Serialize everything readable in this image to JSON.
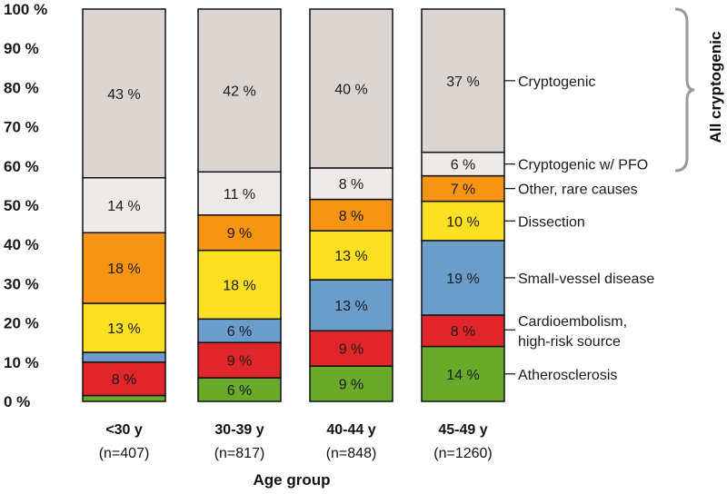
{
  "chart_data": {
    "type": "bar",
    "stacked": true,
    "xlabel": "Age group",
    "ylabel": "",
    "ylim": [
      0,
      100
    ],
    "yticks": [
      "0 %",
      "10 %",
      "20 %",
      "30 %",
      "40 %",
      "50 %",
      "60 %",
      "70 %",
      "80 %",
      "90 %",
      "100 %"
    ],
    "categories": [
      {
        "label": "<30 y",
        "n": "(n=407)"
      },
      {
        "label": "30-39 y",
        "n": "(n=817)"
      },
      {
        "label": "40-44 y",
        "n": "(n=848)"
      },
      {
        "label": "45-49 y",
        "n": "(n=1260)"
      }
    ],
    "series": [
      {
        "name": "Atherosclerosis",
        "color": "#6aaa2a",
        "values": [
          1.5,
          6,
          9,
          14
        ],
        "labels": [
          "",
          "6 %",
          "9 %",
          "14 %"
        ]
      },
      {
        "name": "Cardioembolism, high-risk source",
        "color": "#e0262b",
        "values": [
          8.5,
          9,
          9,
          8
        ],
        "labels": [
          "8 %",
          "9 %",
          "9 %",
          "8 %"
        ]
      },
      {
        "name": "Small-vessel disease",
        "color": "#6b9dcb",
        "values": [
          2.5,
          6,
          13,
          19
        ],
        "labels": [
          "",
          "6 %",
          "13 %",
          "19 %"
        ]
      },
      {
        "name": "Dissection",
        "color": "#fde022",
        "values": [
          12.5,
          17.5,
          12.5,
          10
        ],
        "labels": [
          "13 %",
          "18 %",
          "13 %",
          "10 %"
        ]
      },
      {
        "name": "Other, rare causes",
        "color": "#f79414",
        "values": [
          18,
          9,
          8,
          6.5
        ],
        "labels": [
          "18 %",
          "9 %",
          "8 %",
          "7 %"
        ]
      },
      {
        "name": "Cryptogenic w/ PFO",
        "color": "#eeeaea",
        "values": [
          14,
          11,
          8,
          6
        ],
        "labels": [
          "14 %",
          "11 %",
          "8 %",
          "6 %"
        ]
      },
      {
        "name": "Cryptogenic",
        "color": "#dcd6d3",
        "values": [
          43,
          41.5,
          40.5,
          36.5
        ],
        "labels": [
          "43 %",
          "42 %",
          "40 %",
          "37 %"
        ]
      }
    ],
    "legend_lines": [
      [
        "Cryptogenic"
      ],
      [
        "Cryptogenic w/ PFO"
      ],
      [
        "Other, rare causes"
      ],
      [
        "Dissection"
      ],
      [
        "Small-vessel disease"
      ],
      [
        "Cardioembolism,",
        "high-risk source"
      ],
      [
        "Atherosclerosis"
      ]
    ],
    "bracket_label": "All cryptogenic",
    "bracket_color": "#9a9a9a"
  }
}
